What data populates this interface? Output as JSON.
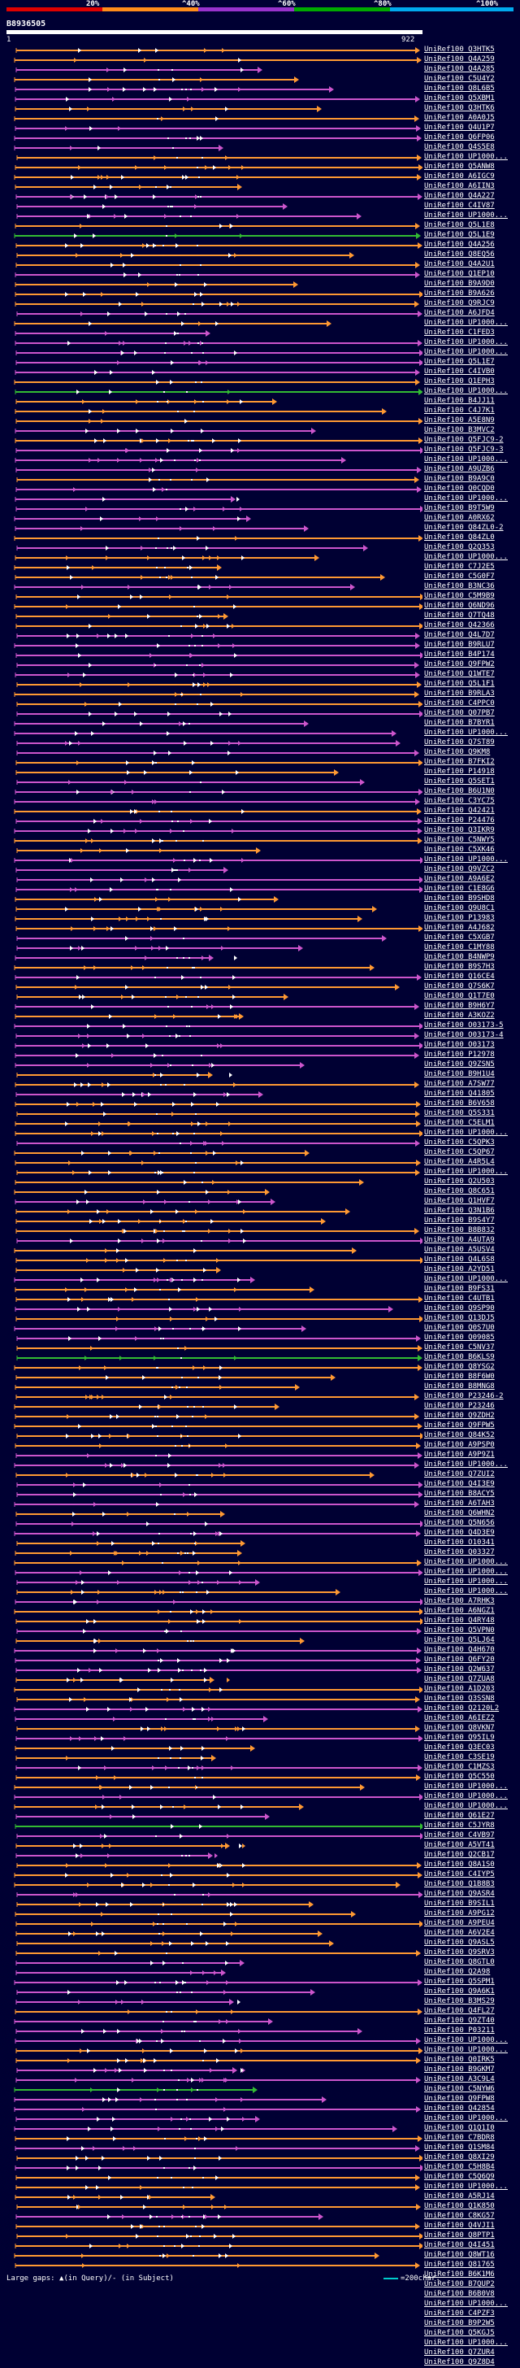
{
  "legend": {
    "ticks": [
      "20%",
      "^40%",
      "^60%",
      "^80%",
      "^100%"
    ],
    "colors": [
      "#e00000",
      "#ff8c1a",
      "#9933cc",
      "#00aa00",
      "#00aaee"
    ]
  },
  "query": {
    "title": "B8936505",
    "start": "1",
    "end": "922"
  },
  "colors": {
    "high": "#ff9933",
    "mid": "#cc55cc",
    "low": "#33bb33",
    "insert": "#ffffff",
    "background": "#000033"
  },
  "footer": {
    "large_gaps": "Large gaps: ▲(in Query)/- (in Subject)",
    "scale": "=200char."
  },
  "hits": [
    "UniRef100_Q3HTK5",
    "UniRef100_Q4A259",
    "UniRef100_Q4A285",
    "UniRef100_C5U4Y2",
    "UniRef100_Q8L6B5",
    "UniRef100_Q5XBM1",
    "UniRef100_Q3HTK6",
    "UniRef100_A0A0J5",
    "UniRef100_Q4U1P7",
    "UniRef100_Q6FP06",
    "UniRef100_Q4S5E8",
    "UniRef100_UP1000...",
    "UniRef100_Q5ANW8",
    "UniRef100_A6IGC9",
    "UniRef100_A6IIN3",
    "UniRef100_Q4A227",
    "UniRef100_C4IV87",
    "UniRef100_UP1000...",
    "UniRef100_Q5L1E8",
    "UniRef100_Q5L1E9",
    "UniRef100_Q4A256",
    "UniRef100_Q8EQ56",
    "UniRef100_Q4A2U1",
    "UniRef100_Q1EP10",
    "UniRef100_B9A9D0",
    "UniRef100_B9A626",
    "UniRef100_Q9RJC9",
    "UniRef100_A6JFD4",
    "UniRef100_UP1000...",
    "UniRef100_C1FED3",
    "UniRef100_UP1000...",
    "UniRef100_UP1000...",
    "UniRef100_Q5L1E7",
    "UniRef100_C4IVB0",
    "UniRef100_Q1EPH3",
    "UniRef100_UP1000...",
    "UniRef100_B4JJ11",
    "UniRef100_C4J7K1",
    "UniRef100_A5E8N9",
    "UniRef100_B3MVC2",
    "UniRef100_Q5FJC9-2",
    "UniRef100_Q5FJC9-3",
    "UniRef100_UP1000...",
    "UniRef100_A9UZB6",
    "UniRef100_B9A9C0",
    "UniRef100_Q0CQD0",
    "UniRef100_UP1000...",
    "UniRef100_B9T5W9",
    "UniRef100_A0RX62",
    "UniRef100_Q84ZL0-2",
    "UniRef100_Q84ZL0",
    "UniRef100_Q2Q353",
    "UniRef100_UP1000...",
    "UniRef100_C7J2E5",
    "UniRef100_C5G0F7",
    "UniRef100_B3NC36",
    "UniRef100_C5M9B9",
    "UniRef100_Q6ND96",
    "UniRef100_Q7TQ48",
    "UniRef100_Q42366",
    "UniRef100_Q4L7D7",
    "UniRef100_B9RLU7",
    "UniRef100_B4P174",
    "UniRef100_Q9FPW2",
    "UniRef100_Q1WTE7",
    "UniRef100_Q5L1F1",
    "UniRef100_B9RLA3",
    "UniRef100_C4PPC0",
    "UniRef100_Q07PB7",
    "UniRef100_B7BYR1",
    "UniRef100_UP1000...",
    "UniRef100_Q7ST89",
    "UniRef100_Q9KM8",
    "UniRef100_B7FKI2",
    "UniRef100_P14918",
    "UniRef100_Q5SET1",
    "UniRef100_B6U1N0",
    "UniRef100_C3YC75",
    "UniRef100_Q42421",
    "UniRef100_P24476",
    "UniRef100_Q3IKR9",
    "UniRef100_C5NWY5",
    "UniRef100_C5XK46",
    "UniRef100_UP1000...",
    "UniRef100_Q9VZC2",
    "UniRef100_A9A6E2",
    "UniRef100_C1E8G6",
    "UniRef100_B9SHD8",
    "UniRef100_Q9U8C1",
    "UniRef100_P13983",
    "UniRef100_A4J682",
    "UniRef100_C5XGB7",
    "UniRef100_C1MY88",
    "UniRef100_B4NWP9",
    "UniRef100_B9S7H3",
    "UniRef100_Q16CE4",
    "UniRef100_Q7S6K7",
    "UniRef100_Q1T7E0",
    "UniRef100_B9H6Y7",
    "UniRef100_A3KOZ2",
    "UniRef100_O03173-5",
    "UniRef100_O03173-4",
    "UniRef100_O03173",
    "UniRef100_P12978",
    "UniRef100_Q9ZSN5",
    "UniRef100_B9H1U4",
    "UniRef100_A7SW77",
    "UniRef100_Q41805",
    "UniRef100_B6V658",
    "UniRef100_Q5S331",
    "UniRef100_C5ELM1",
    "UniRef100_UP1000...",
    "UniRef100_C5QPK3",
    "UniRef100_C5QP67",
    "UniRef100_A4R5L4",
    "UniRef100_UP1000...",
    "UniRef100_Q2U503",
    "UniRef100_Q8C651",
    "UniRef100_Q1HVF7",
    "UniRef100_Q3N1B6",
    "UniRef100_B9S4Y7",
    "UniRef100_B8B832",
    "UniRef100_A4UTA9",
    "UniRef100_A5USV4",
    "UniRef100_Q4L6S8",
    "UniRef100_A2YD51",
    "UniRef100_UP1000...",
    "UniRef100_B9FS31",
    "UniRef100_C4UTB1",
    "UniRef100_Q9SP90",
    "UniRef100_Q13DJ5",
    "UniRef100_Q0S7U0",
    "UniRef100_Q09085",
    "UniRef100_C5NV37",
    "UniRef100_B6KLS9",
    "UniRef100_Q8YSG2",
    "UniRef100_B8F6W0",
    "UniRef100_B8MNG8",
    "UniRef100_P23246-2",
    "UniRef100_P23246",
    "UniRef100_Q9ZDH2",
    "UniRef100_Q9FPW5",
    "UniRef100_Q84K52",
    "UniRef100_A9PSP0",
    "UniRef100_A9P9Z1",
    "UniRef100_UP1000...",
    "UniRef100_Q7ZUI2",
    "UniRef100_Q4I3E9",
    "UniRef100_B8ACY5",
    "UniRef100_A6TAH3",
    "UniRef100_Q6WHN2",
    "UniRef100_Q5N656",
    "UniRef100_Q4D3E9",
    "UniRef100_O10341",
    "UniRef100_Q03327",
    "UniRef100_UP1000...",
    "UniRef100_UP1000...",
    "UniRef100_UP1000...",
    "UniRef100_UP1000...",
    "UniRef100_A7RHK3",
    "UniRef100_A6NGZ1",
    "UniRef100_Q4RY48",
    "UniRef100_Q5VPN0",
    "UniRef100_Q5LJ64",
    "UniRef100_Q4H670",
    "UniRef100_Q6FY20",
    "UniRef100_Q2W637",
    "UniRef100_Q7ZUA8",
    "UniRef100_A1D203",
    "UniRef100_Q3SSN8",
    "UniRef100_Q2120L2",
    "UniRef100_A6IEZ2",
    "UniRef100_Q8VKN7",
    "UniRef100_Q95IL9",
    "UniRef100_Q3EC03",
    "UniRef100_C3SE19",
    "UniRef100_C1MZS3",
    "UniRef100_Q5C550",
    "UniRef100_UP1000...",
    "UniRef100_UP1000...",
    "UniRef100_UP1000...",
    "UniRef100_Q61E27",
    "UniRef100_C5JYR8",
    "UniRef100_C4VB97",
    "UniRef100_A5VT41",
    "UniRef100_Q2CB17",
    "UniRef100_Q8A1S0",
    "UniRef100_C4IYP5",
    "UniRef100_Q1B8B3",
    "UniRef100_Q9ASR4",
    "UniRef100_B9SIL1",
    "UniRef100_A9PG12",
    "UniRef100_A9PEU4",
    "UniRef100_A6V2E4",
    "UniRef100_Q9ASL5",
    "UniRef100_Q9SRV3",
    "UniRef100_Q8GTL0",
    "UniRef100_Q2A98",
    "UniRef100_Q5SPM1",
    "UniRef100_Q9A6K1",
    "UniRef100_B3MS29",
    "UniRef100_Q4FL27",
    "UniRef100_Q9ZT40",
    "UniRef100_P03211",
    "UniRef100_UP1000...",
    "UniRef100_UP1000...",
    "UniRef100_Q0IRK5",
    "UniRef100_B9GKM7",
    "UniRef100_A3C9L4",
    "UniRef100_C5NYW6",
    "UniRef100_Q9FPW8",
    "UniRef100_Q42854",
    "UniRef100_UP1000...",
    "UniRef100_Q1Q1I0",
    "UniRef100_C7BDR8",
    "UniRef100_Q1SM84",
    "UniRef100_Q8XI29",
    "UniRef100_C5H8B4",
    "UniRef100_C5Q6Q9",
    "UniRef100_UP1000...",
    "UniRef100_A5RJ14",
    "UniRef100_Q1K850",
    "UniRef100_C8KG57",
    "UniRef100_Q4VJI1",
    "UniRef100_Q8PTP1",
    "UniRef100_Q4I451",
    "UniRef100_Q8WT16",
    "UniRef100_Q81765",
    "UniRef100_B6K1M6",
    "UniRef100_B7QUP2",
    "UniRef100_B6B0V8",
    "UniRef100_UP1000...",
    "UniRef100_C4PZF3",
    "UniRef100_B9P2W5",
    "UniRef100_Q5KGJ5",
    "UniRef100_UP1000...",
    "UniRef100_Q7ZUR4",
    "UniRef100_Q9Z8D4"
  ]
}
